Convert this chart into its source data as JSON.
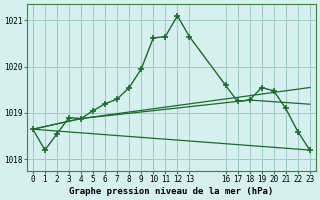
{
  "title": "Graphe pression niveau de la mer (hPa)",
  "bg_color": "#d6f0f0",
  "grid_color": "#a0c8c8",
  "line_color": "#1a6b2a",
  "xlim": [
    -0.5,
    23.5
  ],
  "ylim": [
    1017.75,
    1021.35
  ],
  "yticks": [
    1018,
    1019,
    1020,
    1021
  ],
  "xtick_positions": [
    0,
    1,
    2,
    3,
    4,
    5,
    6,
    7,
    8,
    9,
    10,
    11,
    12,
    13,
    16,
    17,
    18,
    19,
    20,
    21,
    22,
    23
  ],
  "xtick_labels": [
    "0",
    "1",
    "2",
    "3",
    "4",
    "5",
    "6",
    "7",
    "8",
    "9",
    "10",
    "11",
    "12",
    "13",
    "16",
    "17",
    "18",
    "19",
    "20",
    "21",
    "22",
    "23"
  ],
  "series1_x": [
    0,
    1,
    2,
    3,
    4,
    5,
    6,
    7,
    8,
    9,
    10,
    11,
    12,
    13,
    16,
    17,
    18,
    19,
    20,
    21,
    22,
    23
  ],
  "series1_y": [
    1018.65,
    1018.2,
    1018.55,
    1018.9,
    1018.88,
    1019.05,
    1019.2,
    1019.3,
    1019.55,
    1019.95,
    1020.62,
    1020.65,
    1021.1,
    1020.65,
    1019.6,
    1019.25,
    1019.28,
    1019.55,
    1019.48,
    1019.1,
    1018.6,
    1018.2
  ],
  "series2_x": [
    0,
    4,
    23
  ],
  "series2_y": [
    1018.65,
    1018.88,
    1019.55
  ],
  "series3_x": [
    0,
    4,
    17,
    18,
    23
  ],
  "series3_y": [
    1018.65,
    1018.88,
    1019.25,
    1019.28,
    1019.19
  ],
  "series4_x": [
    0,
    23
  ],
  "series4_y": [
    1018.65,
    1018.2
  ]
}
